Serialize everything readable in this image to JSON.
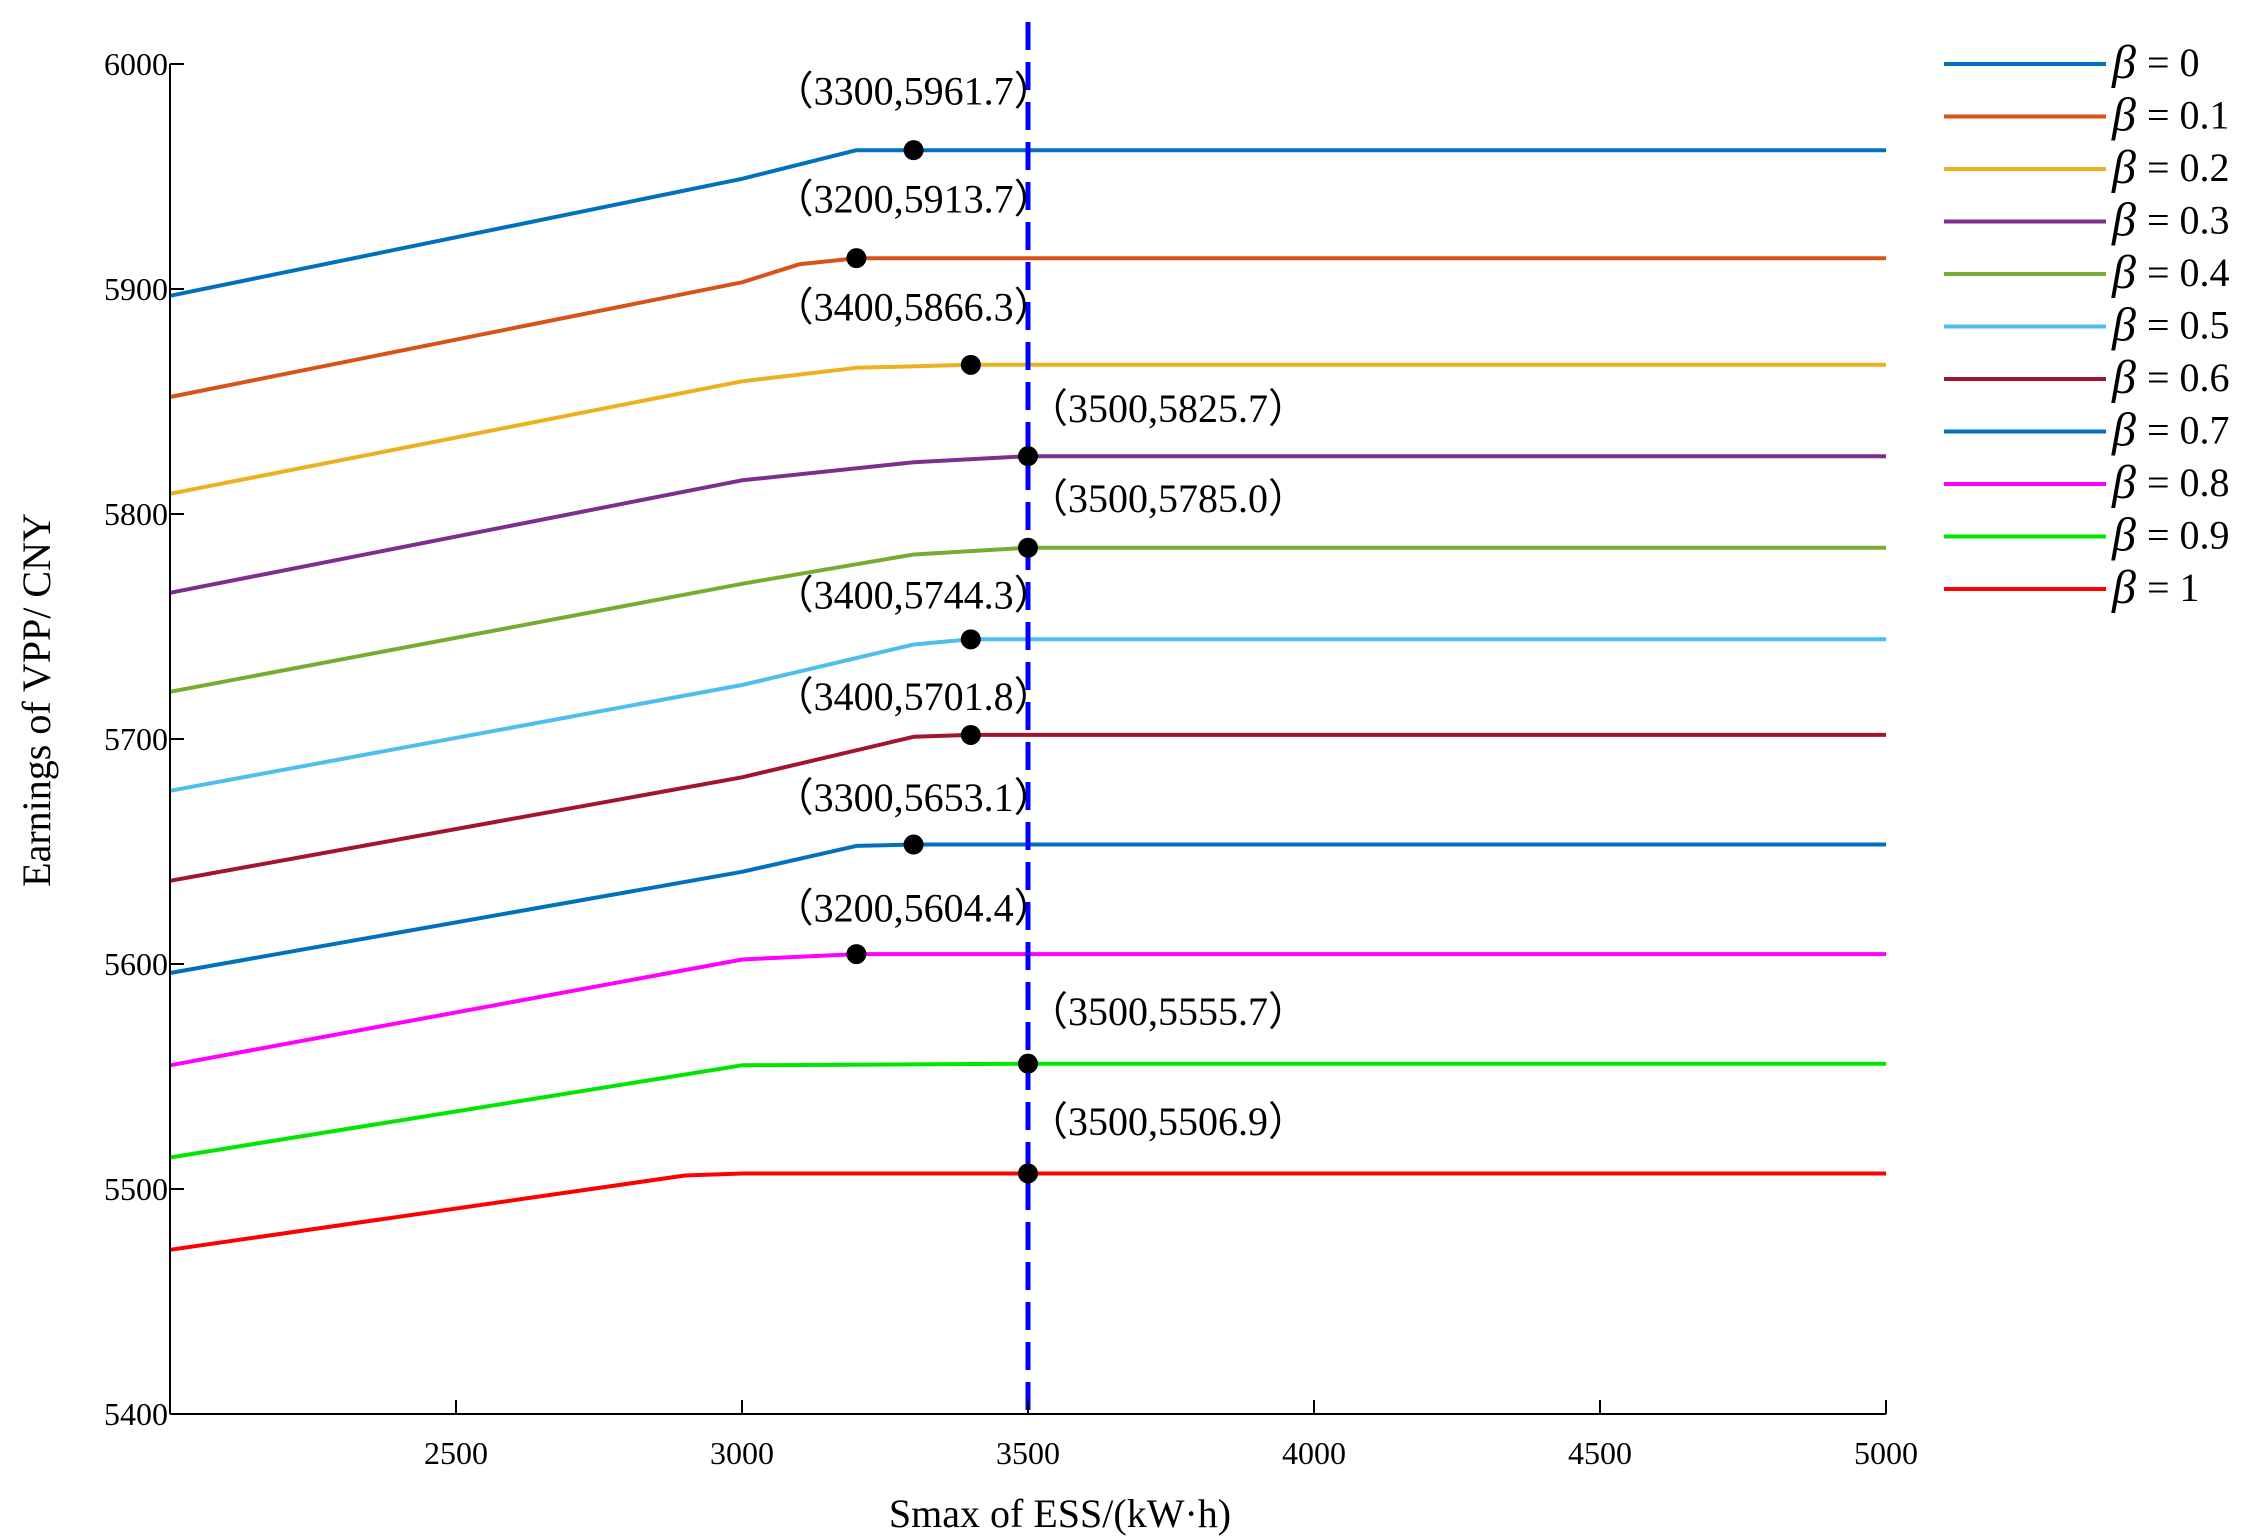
{
  "chart_data": {
    "type": "line",
    "title": "",
    "xlabel": "Smax of ESS/(kW·h)",
    "ylabel": "Earnings of VPP/ CNY",
    "xlim": [
      2000,
      5000
    ],
    "ylim": [
      5400,
      6000
    ],
    "xticks": [
      2500,
      3000,
      3500,
      4000,
      4500,
      5000
    ],
    "yticks": [
      5400,
      5500,
      5600,
      5700,
      5800,
      5900,
      6000
    ],
    "legend_position": "right-outside",
    "legend_symbol": "β",
    "vline": {
      "x": 3500,
      "color": "#0000ff",
      "style": "dashed"
    },
    "series": [
      {
        "name": "0",
        "label": "= 0",
        "color": "#0072bd",
        "x": [
          2000,
          3000,
          3200,
          5000
        ],
        "y": [
          5897.0,
          5949.0,
          5961.7,
          5961.7
        ]
      },
      {
        "name": "0.1",
        "label": "= 0.1",
        "color": "#d95319",
        "x": [
          2000,
          3000,
          3100,
          3200,
          5000
        ],
        "y": [
          5852.0,
          5903.0,
          5911.0,
          5913.7,
          5913.7
        ]
      },
      {
        "name": "0.2",
        "label": "= 0.2",
        "color": "#edb120",
        "x": [
          2000,
          3000,
          3200,
          3400,
          5000
        ],
        "y": [
          5809.0,
          5859.0,
          5865.0,
          5866.3,
          5866.3
        ]
      },
      {
        "name": "0.3",
        "label": "= 0.3",
        "color": "#7e2f8e",
        "x": [
          2000,
          3000,
          3300,
          3500,
          5000
        ],
        "y": [
          5765.0,
          5815.0,
          5823.0,
          5825.7,
          5825.7
        ]
      },
      {
        "name": "0.4",
        "label": "= 0.4",
        "color": "#77ac30",
        "x": [
          2000,
          3000,
          3300,
          3500,
          5000
        ],
        "y": [
          5721.0,
          5769.0,
          5782.0,
          5785.0,
          5785.0
        ]
      },
      {
        "name": "0.5",
        "label": "= 0.5",
        "color": "#4dbeee",
        "x": [
          2000,
          3000,
          3300,
          3400,
          5000
        ],
        "y": [
          5677.0,
          5724.0,
          5742.0,
          5744.3,
          5744.3
        ]
      },
      {
        "name": "0.6",
        "label": "= 0.6",
        "color": "#a2142f",
        "x": [
          2000,
          3000,
          3300,
          3400,
          5000
        ],
        "y": [
          5637.0,
          5683.0,
          5701.0,
          5701.8,
          5701.8
        ]
      },
      {
        "name": "0.7",
        "label": "= 0.7",
        "color": "#0072bd",
        "x": [
          2000,
          3000,
          3200,
          3300,
          5000
        ],
        "y": [
          5596.0,
          5641.0,
          5652.5,
          5653.1,
          5653.1
        ]
      },
      {
        "name": "0.8",
        "label": "= 0.8",
        "color": "#ff00ff",
        "x": [
          2000,
          3000,
          3200,
          5000
        ],
        "y": [
          5555.0,
          5602.0,
          5604.4,
          5604.4
        ]
      },
      {
        "name": "0.9",
        "label": "= 0.9",
        "color": "#00e600",
        "x": [
          2000,
          3000,
          3500,
          5000
        ],
        "y": [
          5514.0,
          5555.0,
          5555.7,
          5555.7
        ]
      },
      {
        "name": "1",
        "label": "= 1",
        "color": "#ff0000",
        "x": [
          2000,
          2900,
          3000,
          3500,
          5000
        ],
        "y": [
          5473.0,
          5506.0,
          5506.9,
          5506.9,
          5506.9
        ]
      }
    ],
    "annotations": [
      {
        "label": "（3300,5961.7）",
        "point_x": 3300,
        "point_y": 5961.7,
        "text_x": 3300,
        "text_y": 5982,
        "anchor": "middle"
      },
      {
        "label": "（3200,5913.7）",
        "point_x": 3200,
        "point_y": 5913.7,
        "text_x": 3300,
        "text_y": 5934,
        "anchor": "middle"
      },
      {
        "label": "（3400,5866.3）",
        "point_x": 3400,
        "point_y": 5866.3,
        "text_x": 3300,
        "text_y": 5886,
        "anchor": "middle"
      },
      {
        "label": "（3500,5825.7）",
        "point_x": 3500,
        "point_y": 5825.7,
        "text_x": 3500,
        "text_y": 5841,
        "anchor": "start"
      },
      {
        "label": "（3500,5785.0）",
        "point_x": 3500,
        "point_y": 5785.0,
        "text_x": 3500,
        "text_y": 5801,
        "anchor": "start"
      },
      {
        "label": "（3400,5744.3）",
        "point_x": 3400,
        "point_y": 5744.3,
        "text_x": 3300,
        "text_y": 5758,
        "anchor": "middle"
      },
      {
        "label": "（3400,5701.8）",
        "point_x": 3400,
        "point_y": 5701.8,
        "text_x": 3300,
        "text_y": 5713,
        "anchor": "middle"
      },
      {
        "label": "（3300,5653.1）",
        "point_x": 3300,
        "point_y": 5653.1,
        "text_x": 3300,
        "text_y": 5668,
        "anchor": "middle"
      },
      {
        "label": "（3200,5604.4）",
        "point_x": 3200,
        "point_y": 5604.4,
        "text_x": 3300,
        "text_y": 5619,
        "anchor": "middle"
      },
      {
        "label": "（3500,5555.7）",
        "point_x": 3500,
        "point_y": 5555.7,
        "text_x": 3500,
        "text_y": 5573,
        "anchor": "start"
      },
      {
        "label": "（3500,5506.9）",
        "point_x": 3500,
        "point_y": 5506.9,
        "text_x": 3500,
        "text_y": 5524,
        "anchor": "start"
      }
    ]
  }
}
